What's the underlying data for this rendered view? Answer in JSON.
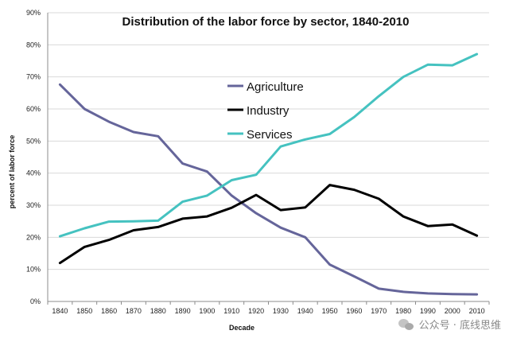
{
  "chart_data": {
    "type": "line",
    "title": "Distribution of the labor force by sector, 1840-2010",
    "xlabel": "Decade",
    "ylabel": "percent of labor force",
    "x": [
      1840,
      1850,
      1860,
      1870,
      1880,
      1890,
      1900,
      1910,
      1920,
      1930,
      1940,
      1950,
      1960,
      1970,
      1980,
      1990,
      2000,
      2010
    ],
    "ylim": [
      0,
      90
    ],
    "yticks": [
      "0%",
      "10%",
      "20%",
      "30%",
      "40%",
      "50%",
      "60%",
      "70%",
      "80%",
      "90%"
    ],
    "grid": true,
    "legend_position": "center",
    "series": [
      {
        "name": "Agriculture",
        "color": "#65659a",
        "values": [
          67.6,
          60.0,
          56.0,
          52.8,
          51.5,
          43.0,
          40.5,
          33.0,
          27.5,
          23.0,
          20.0,
          11.5,
          7.8,
          4.0,
          3.0,
          2.5,
          2.3,
          2.2
        ]
      },
      {
        "name": "Industry",
        "color": "#000000",
        "values": [
          12.0,
          17.0,
          19.2,
          22.2,
          23.2,
          25.8,
          26.5,
          29.2,
          33.2,
          28.5,
          29.3,
          36.3,
          34.8,
          32.0,
          26.5,
          23.5,
          24.0,
          20.5
        ]
      },
      {
        "name": "Services",
        "color": "#45c2c0",
        "values": [
          20.3,
          22.8,
          24.9,
          25.0,
          25.2,
          31.1,
          33.0,
          37.8,
          39.5,
          48.3,
          50.5,
          52.2,
          57.5,
          64.0,
          70.0,
          73.8,
          73.6,
          77.1
        ]
      }
    ]
  },
  "watermark": {
    "icon": "wechat-icon",
    "text": "公众号 · 底线思维"
  }
}
